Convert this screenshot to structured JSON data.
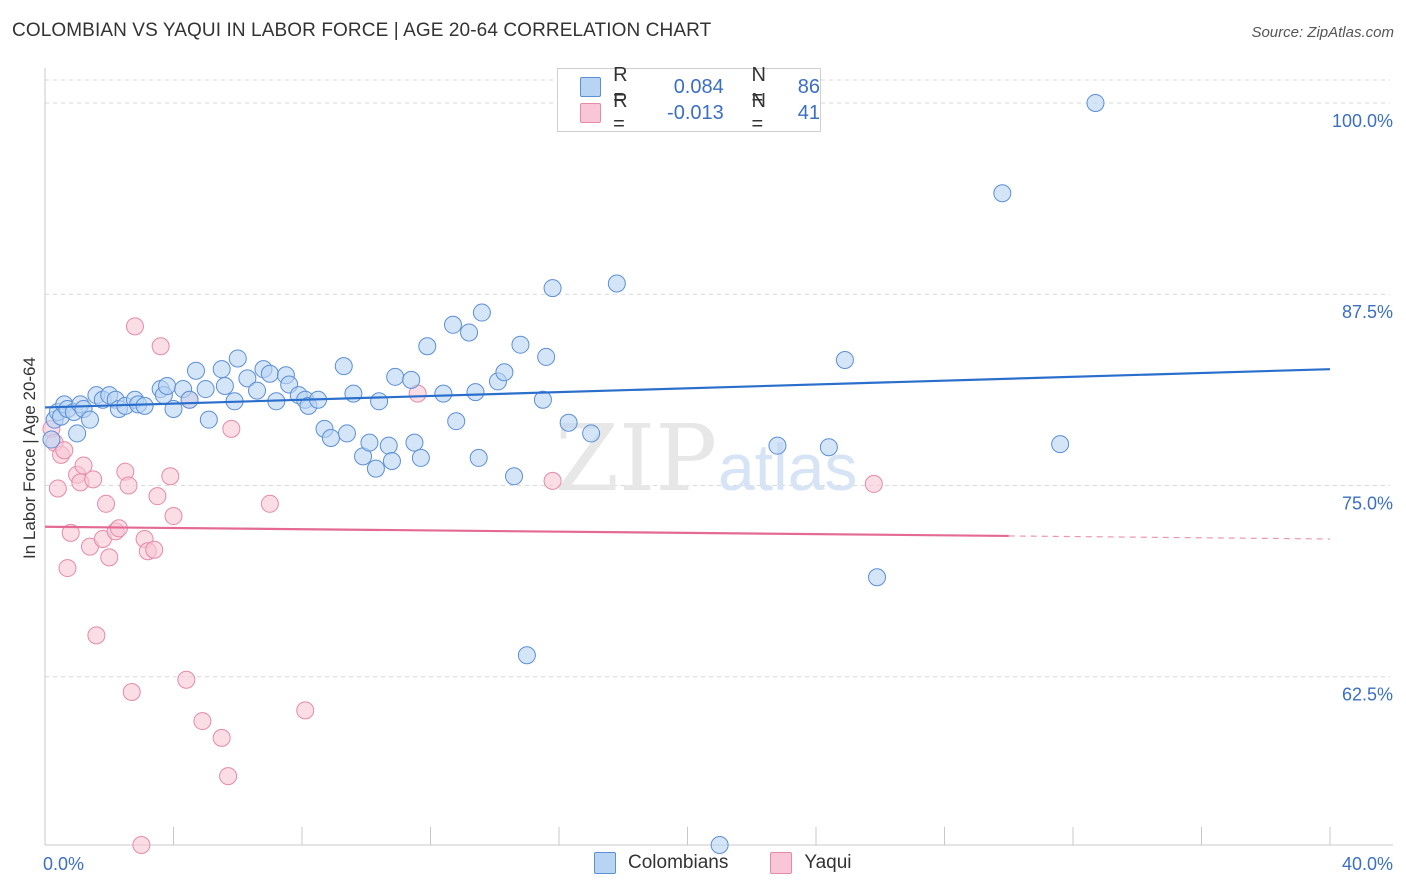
{
  "title": "COLOMBIAN VS YAQUI IN LABOR FORCE | AGE 20-64 CORRELATION CHART",
  "source": "Source: ZipAtlas.com",
  "colors": {
    "colombians_fill": "#b9d4f3",
    "colombians_stroke": "#5b8fd6",
    "colombians_line": "#2a6fcc",
    "yaqui_fill": "#f8c6d6",
    "yaqui_stroke": "#e58aa9",
    "yaqui_line": "#e46a94",
    "axis_text": "#3a6fc4",
    "grid": "#d9d9d9"
  },
  "legend": {
    "rows": [
      {
        "r_label": "R =",
        "r_value": "0.084",
        "n_label": "N =",
        "n_value": "86",
        "series": "colombians"
      },
      {
        "r_label": "R =",
        "r_value": "-0.013",
        "n_label": "N =",
        "n_value": "41",
        "series": "yaqui"
      }
    ]
  },
  "bottom_legend": {
    "colombians": "Colombians",
    "yaqui": "Yaqui"
  },
  "watermark": {
    "zip": "ZIP",
    "atlas": "atlas"
  },
  "chart_data": {
    "type": "scatter",
    "title": "COLOMBIAN VS YAQUI IN LABOR FORCE | AGE 20-64 CORRELATION CHART",
    "xlabel": "",
    "ylabel": "In Labor Force | Age 20-64",
    "xlim": [
      0,
      40
    ],
    "ylim": [
      51.5,
      101.5
    ],
    "x_tick_labels": [
      "0.0%",
      "40.0%"
    ],
    "y_ticks": [
      62.5,
      75.0,
      87.5,
      100.0
    ],
    "y_tick_labels": [
      "62.5%",
      "75.0%",
      "87.5%",
      "100.0%"
    ],
    "grid": true,
    "series": [
      {
        "name": "Colombians",
        "points": [
          [
            0.2,
            78.0
          ],
          [
            0.3,
            79.3
          ],
          [
            0.4,
            79.8
          ],
          [
            0.5,
            79.5
          ],
          [
            0.6,
            80.3
          ],
          [
            0.7,
            80.0
          ],
          [
            0.9,
            79.8
          ],
          [
            1.0,
            78.4
          ],
          [
            1.1,
            80.3
          ],
          [
            1.2,
            80.0
          ],
          [
            1.4,
            79.3
          ],
          [
            1.6,
            80.9
          ],
          [
            1.8,
            80.6
          ],
          [
            2.0,
            80.9
          ],
          [
            2.2,
            80.6
          ],
          [
            2.3,
            80.0
          ],
          [
            2.5,
            80.2
          ],
          [
            2.8,
            80.6
          ],
          [
            2.9,
            80.3
          ],
          [
            3.1,
            80.2
          ],
          [
            3.6,
            81.3
          ],
          [
            3.7,
            80.9
          ],
          [
            3.8,
            81.5
          ],
          [
            4.0,
            80.0
          ],
          [
            4.3,
            81.3
          ],
          [
            4.5,
            80.6
          ],
          [
            4.7,
            82.5
          ],
          [
            5.0,
            81.3
          ],
          [
            5.1,
            79.3
          ],
          [
            5.5,
            82.6
          ],
          [
            5.6,
            81.5
          ],
          [
            5.9,
            80.5
          ],
          [
            6.0,
            83.3
          ],
          [
            6.3,
            82.0
          ],
          [
            6.6,
            81.2
          ],
          [
            6.8,
            82.6
          ],
          [
            7.0,
            82.3
          ],
          [
            7.2,
            80.5
          ],
          [
            7.5,
            82.2
          ],
          [
            7.6,
            81.6
          ],
          [
            7.9,
            80.9
          ],
          [
            8.1,
            80.6
          ],
          [
            8.2,
            80.2
          ],
          [
            8.5,
            80.6
          ],
          [
            8.7,
            78.7
          ],
          [
            8.9,
            78.1
          ],
          [
            9.3,
            82.8
          ],
          [
            9.4,
            78.4
          ],
          [
            9.6,
            81.0
          ],
          [
            9.9,
            76.9
          ],
          [
            10.1,
            77.8
          ],
          [
            10.3,
            76.1
          ],
          [
            10.4,
            80.5
          ],
          [
            10.7,
            77.6
          ],
          [
            10.8,
            76.6
          ],
          [
            10.9,
            82.1
          ],
          [
            11.4,
            81.9
          ],
          [
            11.5,
            77.8
          ],
          [
            11.7,
            76.8
          ],
          [
            11.9,
            84.1
          ],
          [
            12.4,
            81.0
          ],
          [
            12.7,
            85.5
          ],
          [
            12.8,
            79.2
          ],
          [
            13.2,
            85.0
          ],
          [
            13.4,
            81.1
          ],
          [
            13.5,
            76.8
          ],
          [
            13.6,
            86.3
          ],
          [
            14.1,
            81.8
          ],
          [
            14.3,
            82.4
          ],
          [
            14.6,
            75.6
          ],
          [
            14.8,
            84.2
          ],
          [
            15.0,
            63.9
          ],
          [
            15.5,
            80.6
          ],
          [
            15.6,
            83.4
          ],
          [
            15.8,
            87.9
          ],
          [
            16.3,
            79.1
          ],
          [
            17.0,
            78.4
          ],
          [
            17.8,
            88.2
          ],
          [
            21.0,
            51.5
          ],
          [
            22.8,
            77.6
          ],
          [
            24.4,
            77.5
          ],
          [
            24.9,
            83.2
          ],
          [
            25.9,
            69.0
          ],
          [
            29.8,
            94.1
          ],
          [
            31.6,
            77.7
          ],
          [
            32.7,
            100.0
          ]
        ]
      },
      {
        "name": "Yaqui",
        "points": [
          [
            0.2,
            78.7
          ],
          [
            0.3,
            77.8
          ],
          [
            0.4,
            74.8
          ],
          [
            0.5,
            77.0
          ],
          [
            0.6,
            77.3
          ],
          [
            0.7,
            69.6
          ],
          [
            0.8,
            71.9
          ],
          [
            1.0,
            75.7
          ],
          [
            1.1,
            75.2
          ],
          [
            1.2,
            76.3
          ],
          [
            1.4,
            71.0
          ],
          [
            1.5,
            75.4
          ],
          [
            1.6,
            65.2
          ],
          [
            1.8,
            71.5
          ],
          [
            1.9,
            73.8
          ],
          [
            2.0,
            70.3
          ],
          [
            2.2,
            72.0
          ],
          [
            2.3,
            72.2
          ],
          [
            2.5,
            75.9
          ],
          [
            2.6,
            75.0
          ],
          [
            2.7,
            61.5
          ],
          [
            2.8,
            85.4
          ],
          [
            3.0,
            51.5
          ],
          [
            3.1,
            71.5
          ],
          [
            3.2,
            70.7
          ],
          [
            3.4,
            70.8
          ],
          [
            3.5,
            74.3
          ],
          [
            3.6,
            84.1
          ],
          [
            3.9,
            75.6
          ],
          [
            4.0,
            73.0
          ],
          [
            4.4,
            62.3
          ],
          [
            4.5,
            80.6
          ],
          [
            4.9,
            59.6
          ],
          [
            5.5,
            58.5
          ],
          [
            5.7,
            56.0
          ],
          [
            5.8,
            78.7
          ],
          [
            7.0,
            73.8
          ],
          [
            8.1,
            60.3
          ],
          [
            11.6,
            81.0
          ],
          [
            15.8,
            75.3
          ],
          [
            25.8,
            75.1
          ]
        ]
      }
    ],
    "trend_lines": [
      {
        "series": "Colombians",
        "x": [
          0,
          40
        ],
        "y": [
          80.1,
          82.6
        ]
      },
      {
        "series": "Yaqui",
        "x": [
          0,
          30
        ],
        "y": [
          72.3,
          71.7
        ],
        "dashed_extension_to_x": 40
      }
    ]
  }
}
